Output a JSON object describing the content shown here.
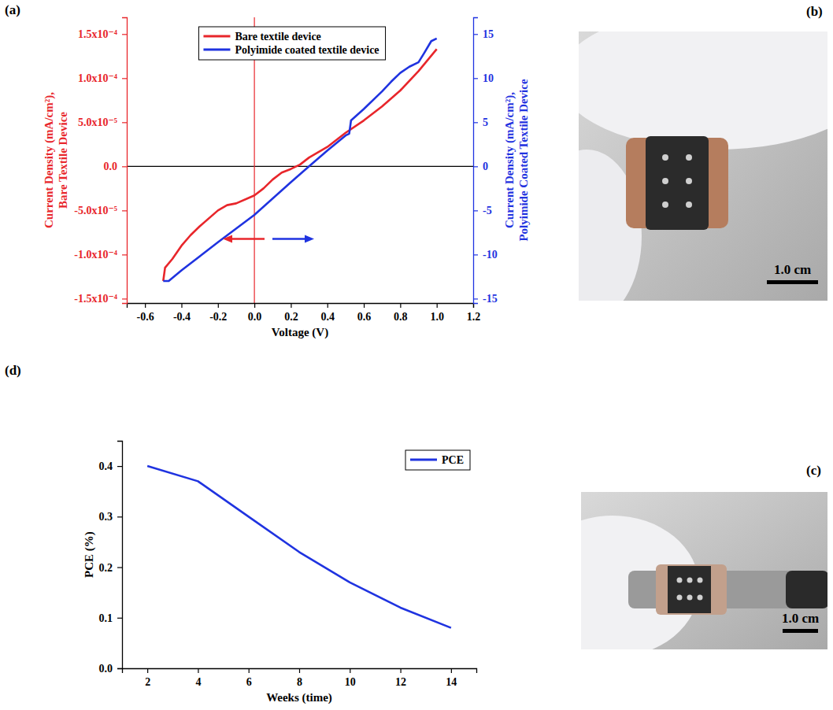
{
  "chart_data": [
    {
      "type": "line",
      "panel": "(a)",
      "xlabel": "Voltage (V)",
      "ylabel": [
        "Current Density (mA/cm²),",
        "Bare Textile Device"
      ],
      "y2label": [
        "Current Density (mA/cm²),",
        "Polyimide Coated Textile Device"
      ],
      "xlim": [
        -0.7,
        1.2
      ],
      "xticks": [
        -0.6,
        -0.4,
        -0.2,
        {
          "value": 0,
          "label": "0.0"
        },
        0.2,
        0.4,
        0.6,
        0.8,
        {
          "value": 1,
          "label": "1.0"
        },
        1.2
      ],
      "ylim": [
        -0.000155,
        0.000169
      ],
      "yticks": [
        {
          "value": -0.00015,
          "label": "-1.5x10⁻⁴"
        },
        {
          "value": -0.0001,
          "label": "-1.0x10⁻⁴"
        },
        {
          "value": -5e-05,
          "label": "-5.0x10⁻⁵"
        },
        {
          "value": 0,
          "label": "0.0"
        },
        {
          "value": 5e-05,
          "label": "5.0x10⁻⁵"
        },
        {
          "value": 0.0001,
          "label": "1.0x10⁻⁴"
        },
        {
          "value": 0.00015,
          "label": "1.5x10⁻⁴"
        }
      ],
      "y2lim": [
        -15.5,
        16.9
      ],
      "y2ticks": [
        -15,
        -10,
        -5,
        0,
        5,
        10,
        15
      ],
      "hlines": [
        0
      ],
      "vlines": [
        0
      ],
      "legend": "upper center",
      "grid": false,
      "series": [
        {
          "name": "Bare textile device",
          "color": "#e8262b",
          "axis": "y",
          "x": [
            -0.5,
            -0.49,
            -0.45,
            -0.4,
            -0.35,
            -0.3,
            -0.2,
            -0.15,
            -0.1,
            0.0,
            0.05,
            0.1,
            0.15,
            0.2,
            0.25,
            0.3,
            0.4,
            0.5,
            0.6,
            0.7,
            0.8,
            0.9,
            1.0
          ],
          "values": [
            -0.00013,
            -0.000115,
            -0.000105,
            -9e-05,
            -7.8e-05,
            -6.8e-05,
            -5e-05,
            -4.4e-05,
            -4.2e-05,
            -3.3e-05,
            -2.5e-05,
            -1.5e-05,
            -7e-06,
            -3e-06,
            2e-06,
            1e-05,
            2.2e-05,
            3.8e-05,
            5.2e-05,
            6.8e-05,
            8.6e-05,
            0.000108,
            0.000133
          ]
        },
        {
          "name": "Polyimide coated textile device",
          "color": "#1f33e0",
          "axis": "y2",
          "x": [
            -0.5,
            -0.47,
            -0.4,
            -0.2,
            0,
            0.2,
            0.3,
            0.4,
            0.5,
            0.52,
            0.53,
            0.6,
            0.7,
            0.75,
            0.8,
            0.85,
            0.9,
            0.93,
            0.97,
            1.0
          ],
          "values": [
            -13,
            -13,
            -11.8,
            -8.6,
            -5.5,
            -1.8,
            0,
            1.8,
            3.5,
            3.7,
            5.2,
            6.5,
            8.5,
            9.6,
            10.6,
            11.3,
            11.8,
            12.8,
            14.2,
            14.5
          ]
        }
      ]
    },
    {
      "type": "line",
      "panel": "(d)",
      "xlabel": "Weeks (time)",
      "ylabel": "PCE (%)",
      "xlim": [
        1,
        15
      ],
      "xticks": [
        2,
        4,
        6,
        8,
        10,
        12,
        14
      ],
      "ylim": [
        0,
        0.45
      ],
      "yticks": [
        {
          "value": 0,
          "label": "0.0"
        },
        0.1,
        0.2,
        0.3,
        0.4
      ],
      "legend": "upper right",
      "grid": false,
      "x": [
        2,
        4,
        6,
        8,
        10,
        12,
        14
      ],
      "series": [
        {
          "name": "PCE",
          "color": "#1f33e0",
          "values": [
            0.4,
            0.37,
            0.3,
            0.23,
            0.17,
            0.12,
            0.08
          ]
        }
      ]
    }
  ],
  "photos": [
    {
      "panel": "(b)",
      "scale_bar": "1.0 cm"
    },
    {
      "panel": "(c)",
      "scale_bar": "1.0 cm"
    }
  ]
}
